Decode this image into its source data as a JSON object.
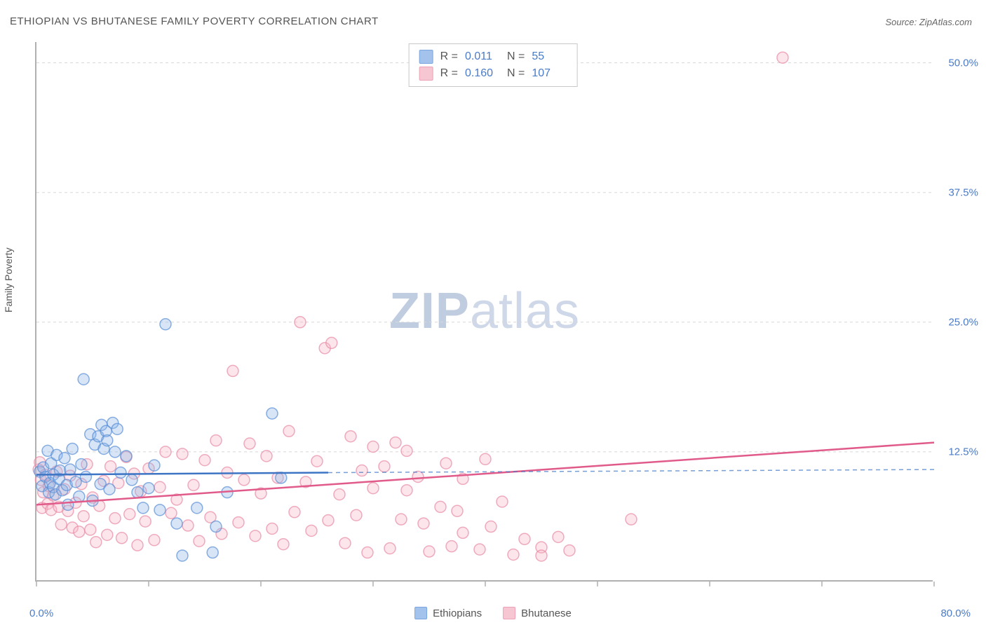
{
  "title": "ETHIOPIAN VS BHUTANESE FAMILY POVERTY CORRELATION CHART",
  "source_label": "Source: ZipAtlas.com",
  "watermark": {
    "bold": "ZIP",
    "light": "atlas"
  },
  "chart": {
    "type": "scatter",
    "background_color": "#ffffff",
    "grid_color": "#d8d8d8",
    "axis_color": "#b0b0b0",
    "ylabel": "Family Poverty",
    "ylabel_fontsize": 14,
    "tick_label_color": "#4a7bc8",
    "tick_label_fontsize": 15,
    "xlim": [
      0,
      80
    ],
    "ylim": [
      0,
      52
    ],
    "ytick_values": [
      12.5,
      25.0,
      37.5,
      50.0
    ],
    "ytick_labels": [
      "12.5%",
      "25.0%",
      "37.5%",
      "50.0%"
    ],
    "xtick_values": [
      0,
      10,
      20,
      30,
      40,
      50,
      60,
      70,
      80
    ],
    "x_min_label": "0.0%",
    "x_max_label": "80.0%",
    "marker_radius": 8,
    "marker_fill_opacity": 0.35,
    "marker_stroke_width": 1.5,
    "trend_line_width": 2.5,
    "trend_dash_extension": "6,5"
  },
  "series": {
    "ethiopians": {
      "label": "Ethiopians",
      "color_fill": "#8db5e8",
      "color_stroke": "#5a8fd6",
      "trend_color": "#3d75c4",
      "R": "0.011",
      "N": "55",
      "trend": {
        "x1": 0,
        "y1": 10.3,
        "x2": 26,
        "y2": 10.5,
        "dash_x2": 80,
        "dash_y2": 10.8
      },
      "points": [
        [
          0.3,
          10.6
        ],
        [
          0.5,
          9.2
        ],
        [
          0.6,
          11.0
        ],
        [
          0.8,
          10.1
        ],
        [
          1.0,
          12.6
        ],
        [
          1.1,
          8.6
        ],
        [
          1.2,
          9.5
        ],
        [
          1.3,
          11.4
        ],
        [
          1.5,
          9.1
        ],
        [
          1.5,
          10.3
        ],
        [
          1.7,
          8.4
        ],
        [
          1.8,
          12.2
        ],
        [
          2.0,
          9.9
        ],
        [
          2.1,
          10.7
        ],
        [
          2.3,
          8.8
        ],
        [
          2.5,
          11.9
        ],
        [
          2.7,
          9.3
        ],
        [
          2.8,
          7.4
        ],
        [
          3.0,
          10.8
        ],
        [
          3.2,
          12.8
        ],
        [
          3.5,
          9.6
        ],
        [
          3.8,
          8.2
        ],
        [
          4.0,
          11.3
        ],
        [
          4.2,
          19.5
        ],
        [
          4.4,
          10.1
        ],
        [
          4.8,
          14.2
        ],
        [
          5.0,
          7.8
        ],
        [
          5.2,
          13.2
        ],
        [
          5.5,
          14.0
        ],
        [
          5.7,
          9.4
        ],
        [
          5.8,
          15.1
        ],
        [
          6.0,
          12.8
        ],
        [
          6.2,
          14.5
        ],
        [
          6.3,
          13.6
        ],
        [
          6.5,
          8.9
        ],
        [
          6.8,
          15.3
        ],
        [
          7.0,
          12.5
        ],
        [
          7.2,
          14.7
        ],
        [
          7.5,
          10.5
        ],
        [
          8.0,
          12.1
        ],
        [
          8.5,
          9.8
        ],
        [
          9.0,
          8.6
        ],
        [
          9.5,
          7.1
        ],
        [
          10.0,
          9.0
        ],
        [
          10.5,
          11.2
        ],
        [
          11.0,
          6.9
        ],
        [
          11.5,
          24.8
        ],
        [
          12.5,
          5.6
        ],
        [
          13.0,
          2.5
        ],
        [
          14.3,
          7.1
        ],
        [
          15.7,
          2.8
        ],
        [
          16.0,
          5.3
        ],
        [
          17.0,
          8.6
        ],
        [
          21.0,
          16.2
        ],
        [
          21.8,
          10.0
        ]
      ]
    },
    "bhutanese": {
      "label": "Bhutanese",
      "color_fill": "#f5b8c8",
      "color_stroke": "#e88aa5",
      "trend_color": "#e05a8a",
      "R": "0.160",
      "N": "107",
      "trend": {
        "x1": 0,
        "y1": 7.4,
        "x2": 80,
        "y2": 13.4
      },
      "points": [
        [
          0.2,
          10.8
        ],
        [
          0.3,
          11.5
        ],
        [
          0.4,
          9.8
        ],
        [
          0.5,
          7.1
        ],
        [
          0.6,
          8.6
        ],
        [
          0.8,
          10.3
        ],
        [
          1.0,
          7.5
        ],
        [
          1.1,
          9.2
        ],
        [
          1.3,
          6.9
        ],
        [
          1.5,
          8.3
        ],
        [
          1.8,
          10.6
        ],
        [
          2.0,
          7.2
        ],
        [
          2.2,
          5.5
        ],
        [
          2.5,
          8.9
        ],
        [
          2.8,
          6.8
        ],
        [
          3.0,
          10.2
        ],
        [
          3.2,
          5.2
        ],
        [
          3.5,
          7.6
        ],
        [
          3.8,
          4.8
        ],
        [
          4.0,
          9.4
        ],
        [
          4.2,
          6.3
        ],
        [
          4.5,
          11.3
        ],
        [
          4.8,
          5.0
        ],
        [
          5.0,
          8.1
        ],
        [
          5.3,
          3.8
        ],
        [
          5.6,
          7.3
        ],
        [
          6.0,
          9.7
        ],
        [
          6.3,
          4.5
        ],
        [
          6.6,
          11.1
        ],
        [
          7.0,
          6.1
        ],
        [
          7.3,
          9.5
        ],
        [
          7.6,
          4.2
        ],
        [
          8.0,
          12.0
        ],
        [
          8.3,
          6.5
        ],
        [
          8.7,
          10.4
        ],
        [
          9.0,
          3.5
        ],
        [
          9.3,
          8.7
        ],
        [
          9.7,
          5.8
        ],
        [
          10.0,
          10.9
        ],
        [
          10.5,
          4.0
        ],
        [
          11.0,
          9.1
        ],
        [
          11.5,
          12.5
        ],
        [
          12.0,
          6.6
        ],
        [
          12.5,
          7.9
        ],
        [
          13.0,
          12.3
        ],
        [
          13.5,
          5.4
        ],
        [
          14.0,
          9.3
        ],
        [
          14.5,
          3.9
        ],
        [
          15.0,
          11.7
        ],
        [
          15.5,
          6.2
        ],
        [
          16.0,
          13.6
        ],
        [
          16.5,
          4.6
        ],
        [
          17.0,
          10.5
        ],
        [
          17.5,
          20.3
        ],
        [
          18.0,
          5.7
        ],
        [
          18.5,
          9.8
        ],
        [
          19.0,
          13.3
        ],
        [
          19.5,
          4.4
        ],
        [
          20.0,
          8.5
        ],
        [
          20.5,
          12.1
        ],
        [
          21.0,
          5.1
        ],
        [
          21.5,
          10.0
        ],
        [
          22.0,
          3.6
        ],
        [
          22.5,
          14.5
        ],
        [
          23.0,
          6.7
        ],
        [
          23.5,
          25.0
        ],
        [
          24.0,
          9.6
        ],
        [
          24.5,
          4.9
        ],
        [
          25.0,
          11.6
        ],
        [
          25.7,
          22.5
        ],
        [
          26.0,
          5.9
        ],
        [
          26.3,
          23.0
        ],
        [
          27.0,
          8.4
        ],
        [
          27.5,
          3.7
        ],
        [
          28.0,
          14.0
        ],
        [
          28.5,
          6.4
        ],
        [
          29.0,
          10.7
        ],
        [
          29.5,
          2.8
        ],
        [
          30.0,
          9.0
        ],
        [
          30.0,
          13.0
        ],
        [
          31.0,
          11.1
        ],
        [
          31.5,
          3.2
        ],
        [
          32.0,
          13.4
        ],
        [
          32.5,
          6.0
        ],
        [
          33.0,
          8.8
        ],
        [
          33.0,
          12.6
        ],
        [
          34.0,
          10.1
        ],
        [
          34.5,
          5.6
        ],
        [
          35.0,
          2.9
        ],
        [
          36.0,
          7.2
        ],
        [
          36.5,
          11.4
        ],
        [
          37.0,
          3.4
        ],
        [
          37.5,
          6.8
        ],
        [
          38.0,
          9.9
        ],
        [
          38.0,
          4.7
        ],
        [
          39.5,
          3.1
        ],
        [
          40.0,
          11.8
        ],
        [
          40.5,
          5.3
        ],
        [
          41.5,
          7.7
        ],
        [
          42.5,
          2.6
        ],
        [
          43.5,
          4.1
        ],
        [
          45.0,
          3.3
        ],
        [
          45.0,
          2.5
        ],
        [
          46.5,
          4.3
        ],
        [
          47.5,
          3.0
        ],
        [
          53.0,
          6.0
        ],
        [
          66.5,
          50.5
        ]
      ]
    }
  },
  "stats_box": {
    "r_label": "R =",
    "n_label": "N ="
  },
  "legend": {
    "position": "bottom-center"
  }
}
